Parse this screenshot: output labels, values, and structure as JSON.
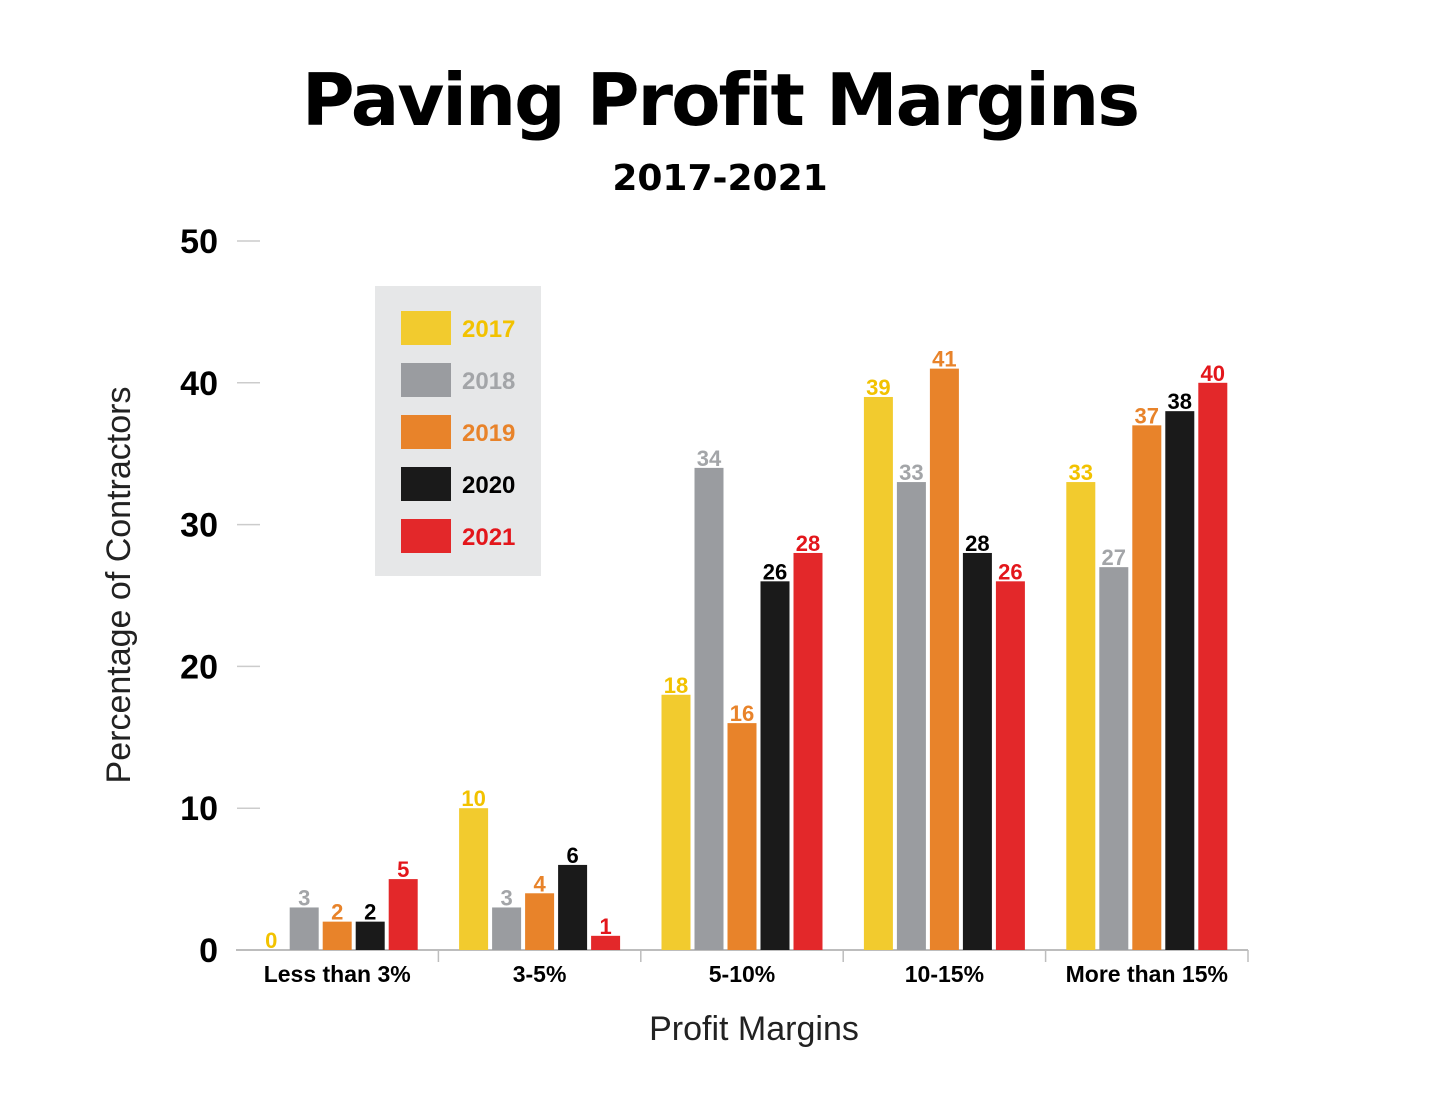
{
  "title": "Paving Profit Margins",
  "subtitle": "2017-2021",
  "chart_data": {
    "type": "bar",
    "categories": [
      "Less than 3%",
      "3-5%",
      "5-10%",
      "10-15%",
      "More than 15%"
    ],
    "series": [
      {
        "name": "2017",
        "color": "#F2CB2E",
        "label_color": "#F2C200",
        "values": [
          0,
          10,
          18,
          39,
          33
        ]
      },
      {
        "name": "2018",
        "color": "#9A9CA0",
        "label_color": "#A3A5A8",
        "values": [
          3,
          3,
          34,
          33,
          27
        ]
      },
      {
        "name": "2019",
        "color": "#E8832A",
        "label_color": "#E8832A",
        "values": [
          2,
          4,
          16,
          41,
          37
        ]
      },
      {
        "name": "2020",
        "color": "#1A1A1A",
        "label_color": "#000000",
        "values": [
          2,
          6,
          26,
          28,
          38
        ]
      },
      {
        "name": "2021",
        "color": "#E3282A",
        "label_color": "#E3161B",
        "values": [
          5,
          1,
          28,
          26,
          40
        ]
      }
    ],
    "xlabel": "Profit Margins",
    "ylabel": "Percentage of Contractors",
    "ylim": [
      0,
      50
    ],
    "yticks": [
      0,
      10,
      20,
      30,
      40,
      50
    ],
    "legend_position": "top-left",
    "grid": false
  }
}
